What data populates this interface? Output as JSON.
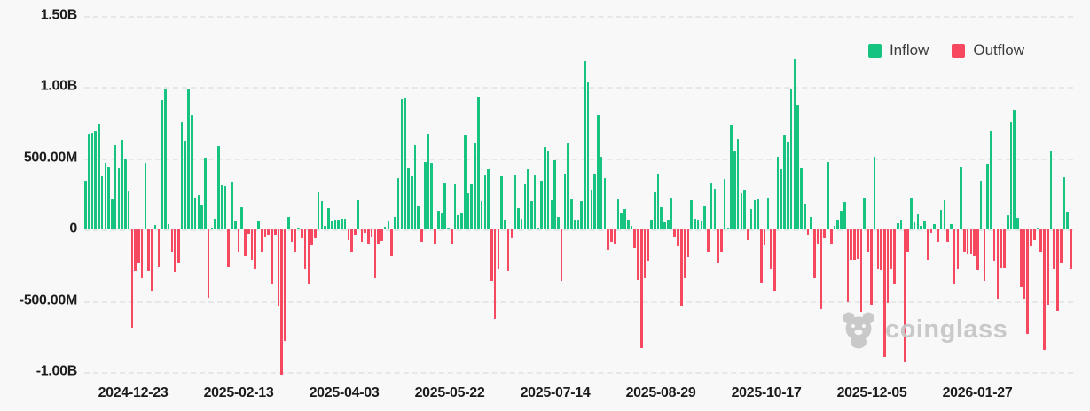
{
  "legend": [
    {
      "label": "Inflow",
      "color": "#17c47f"
    },
    {
      "label": "Outflow",
      "color": "#f6485e"
    }
  ],
  "watermark": {
    "text": "coinglass",
    "icon": "coinglass-bear-logo"
  },
  "colors": {
    "background": "#f8f8f8",
    "gridline": "#e7e7e7",
    "axis_text": "#1b1b1b",
    "inflow": "#17c47f",
    "outflow": "#f6485e",
    "watermark": "#c6c6c6"
  },
  "chart_data": {
    "type": "bar",
    "title": "",
    "xlabel": "",
    "ylabel": "",
    "unit": "USD",
    "grid": "horizontal-dashed",
    "legend_position": "top-right",
    "ylim_millions": [
      -1000,
      1500
    ],
    "y_ticks": [
      {
        "label": "1.50B",
        "value_m": 1500
      },
      {
        "label": "1.00B",
        "value_m": 1000
      },
      {
        "label": "500.00M",
        "value_m": 500
      },
      {
        "label": "0",
        "value_m": 0
      },
      {
        "label": "-500.00M",
        "value_m": -500
      },
      {
        "label": "-1.00B",
        "value_m": -1000
      }
    ],
    "x_ticks": [
      "2024-12-23",
      "2025-02-13",
      "2025-04-03",
      "2025-05-22",
      "2025-07-14",
      "2025-08-29",
      "2025-10-17",
      "2025-12-05",
      "2026-01-27"
    ],
    "series_note": "daily net flow; positive = Inflow (green), negative = Outflow (red); values in millions USD",
    "values_millions": [
      340,
      670,
      675,
      690,
      740,
      370,
      465,
      435,
      210,
      590,
      430,
      630,
      490,
      270,
      -690,
      -290,
      -237,
      -340,
      465,
      -290,
      -436,
      30,
      -258,
      906,
      980,
      35,
      -160,
      -300,
      -237,
      750,
      620,
      980,
      800,
      224,
      240,
      176,
      503,
      -478,
      15,
      73,
      585,
      312,
      302,
      -260,
      335,
      55,
      -163,
      157,
      -185,
      -34,
      -210,
      -280,
      60,
      -160,
      -50,
      -40,
      -384,
      -40,
      -540,
      -1020,
      -780,
      84,
      -90,
      -153,
      10,
      -60,
      -280,
      -384,
      -110,
      -60,
      260,
      200,
      25,
      150,
      60,
      67,
      70,
      77,
      73,
      -75,
      -163,
      -37,
      207,
      -90,
      -27,
      -100,
      -58,
      -340,
      -100,
      -80,
      20,
      56,
      -185,
      88,
      360,
      910,
      920,
      430,
      370,
      590,
      160,
      -90,
      470,
      670,
      465,
      -100,
      130,
      110,
      320,
      10,
      -105,
      314,
      100,
      113,
      665,
      256,
      319,
      600,
      930,
      200,
      377,
      423,
      -363,
      -630,
      -280,
      370,
      71,
      -290,
      -60,
      380,
      150,
      77,
      318,
      420,
      200,
      377,
      10,
      340,
      576,
      545,
      207,
      486,
      90,
      -363,
      392,
      600,
      210,
      67,
      70,
      197,
      1180,
      1030,
      280,
      385,
      800,
      510,
      360,
      -140,
      -90,
      -100,
      214,
      113,
      140,
      67,
      25,
      -132,
      -352,
      -834,
      -340,
      -226,
      71,
      260,
      390,
      155,
      50,
      70,
      218,
      -50,
      -117,
      -540,
      -340,
      -195,
      203,
      77,
      71,
      63,
      160,
      -153,
      323,
      287,
      -237,
      -163,
      354,
      15,
      734,
      545,
      633,
      256,
      280,
      -75,
      145,
      203,
      214,
      -373,
      -110,
      224,
      -280,
      -436,
      507,
      420,
      665,
      616,
      980,
      1190,
      870,
      428,
      182,
      -40,
      88,
      -340,
      -100,
      -560,
      -60,
      470,
      -100,
      25,
      70,
      130,
      190,
      -510,
      -216,
      -216,
      -205,
      -580,
      224,
      -163,
      -525,
      512,
      -280,
      -285,
      -897,
      -516,
      -280,
      -384,
      46,
      71,
      -930,
      -163,
      224,
      50,
      105,
      25,
      56,
      -216,
      -27,
      36,
      -90,
      134,
      203,
      -90,
      36,
      -384,
      -280,
      444,
      -153,
      -174,
      -174,
      -185,
      -285,
      344,
      -363,
      460,
      690,
      -222,
      -490,
      -273,
      -268,
      99,
      750,
      836,
      82,
      -405,
      -490,
      -730,
      -120,
      -75,
      10,
      -160,
      -845,
      -525,
      553,
      -280,
      -572,
      -237,
      365,
      126,
      -280
    ]
  }
}
